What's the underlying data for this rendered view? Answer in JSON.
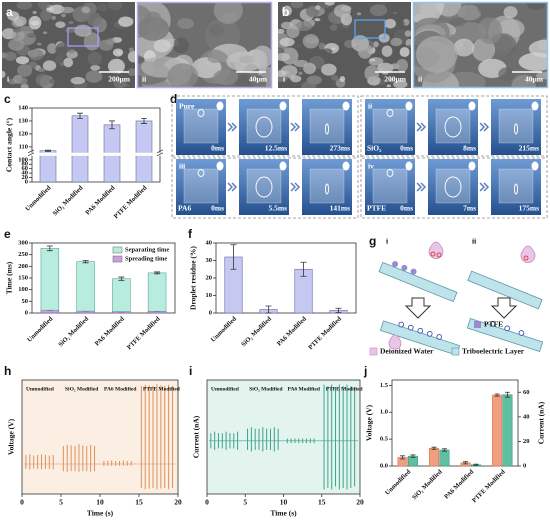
{
  "panels": {
    "a": {
      "label": "a",
      "parts": [
        "i",
        "ii"
      ],
      "scales": [
        "200μm",
        "40μm"
      ]
    },
    "b": {
      "label": "b",
      "parts": [
        "i",
        "ii"
      ],
      "scales": [
        "200μm",
        "40μm"
      ]
    },
    "d": {
      "label": "d",
      "groups": [
        {
          "name": "Pure",
          "times": [
            "0ms",
            "12.5ms",
            "273ms"
          ]
        },
        {
          "numeral": "ii",
          "name": "SiO₂",
          "times": [
            "0ms",
            "8ms",
            "215ms"
          ]
        },
        {
          "numeral": "iii",
          "name": "PA6",
          "times": [
            "0ms",
            "5.5ms",
            "141ms"
          ]
        },
        {
          "numeral": "iv",
          "name": "PTFE",
          "times": [
            "0ms",
            "7ms",
            "175ms"
          ]
        }
      ]
    },
    "g": {
      "label": "g",
      "parts": [
        "i",
        "ii"
      ],
      "legend": [
        "Deionized Water",
        "PTFE",
        "Triboelectric Layer"
      ]
    }
  },
  "chart_data": [
    {
      "panel": "c",
      "type": "bar",
      "y_label": "Contact angle (°)",
      "categories": [
        "Unmodified",
        "SiO₂ Modified",
        "PA6 Modified",
        "PTFE Modified"
      ],
      "values": [
        107,
        134,
        127,
        130
      ],
      "errors": [
        0.5,
        2,
        3,
        2
      ],
      "color": "#c5c8f0",
      "ylim": [
        0,
        140
      ],
      "yticks": [
        0,
        20,
        40,
        60,
        80,
        100,
        110,
        120,
        130,
        140
      ],
      "axis_break": 100
    },
    {
      "panel": "e",
      "type": "stacked_bar",
      "y_label": "Time (ms)",
      "categories": [
        "Unmodified",
        "SiO₂ Modified",
        "PA6 Modified",
        "PTFE Modified"
      ],
      "series": [
        {
          "name": "Spreading time",
          "color": "#c9a0dc",
          "values": [
            12,
            8,
            6,
            7
          ],
          "errors": [
            1,
            1,
            1,
            1
          ]
        },
        {
          "name": "Separating time",
          "color": "#b8ecdf",
          "values": [
            265,
            212,
            141,
            165
          ],
          "errors": [
            10,
            5,
            7,
            4
          ]
        }
      ],
      "ylim": [
        0,
        300
      ],
      "yticks": [
        0,
        50,
        100,
        150,
        200,
        250,
        300
      ],
      "legend": "upper right"
    },
    {
      "panel": "f",
      "type": "bar",
      "y_label": "Droplet residue (%)",
      "categories": [
        "Unmodified",
        "SiO₂ Modified",
        "PA6 Modified",
        "PTFE Modified"
      ],
      "values": [
        32,
        2,
        25,
        1.5
      ],
      "errors": [
        7,
        2,
        4,
        1.2
      ],
      "color": "#c5c8f0",
      "ylim": [
        0,
        40
      ],
      "yticks": [
        0,
        10,
        20,
        30,
        40
      ]
    },
    {
      "panel": "h",
      "type": "spikes",
      "y_label": "Voltage (V)",
      "x_label": "Time (s)",
      "annotations": [
        "Unmodified",
        "SiO₂ Modified",
        "PA6 Modified",
        "PTFE Modified"
      ],
      "x": [
        0.5,
        1,
        1.5,
        2,
        2.5,
        3,
        3.5,
        4,
        5.3,
        5.8,
        6.3,
        6.8,
        7.3,
        7.8,
        8.3,
        8.8,
        9.3,
        10.5,
        11,
        11.5,
        12,
        12.5,
        13,
        13.5,
        14,
        15.3,
        15.8,
        16.3,
        16.8,
        17.3,
        17.8,
        18.3,
        18.8,
        19.3
      ],
      "peaks": [
        0.15,
        0.16,
        0.14,
        0.15,
        0.16,
        0.15,
        0.14,
        0.15,
        0.3,
        0.32,
        0.31,
        0.3,
        0.33,
        0.31,
        0.3,
        0.32,
        0.3,
        0.05,
        0.05,
        0.06,
        0.05,
        0.05,
        0.06,
        0.05,
        0.05,
        1.3,
        1.32,
        1.31,
        1.3,
        1.33,
        1.31,
        1.3,
        1.32,
        1.3
      ],
      "troughs": [
        -0.08,
        -0.09,
        -0.08,
        -0.08,
        -0.09,
        -0.08,
        -0.08,
        -0.09,
        -0.12,
        -0.13,
        -0.12,
        -0.12,
        -0.13,
        -0.12,
        -0.12,
        -0.13,
        -0.12,
        -0.03,
        -0.03,
        -0.03,
        -0.03,
        -0.03,
        -0.03,
        -0.03,
        -0.03,
        -0.4,
        -0.42,
        -0.41,
        -0.4,
        -0.42,
        -0.41,
        -0.4,
        -0.42,
        -0.4
      ],
      "xlim": [
        0,
        20
      ],
      "xticks": [
        0,
        5,
        10,
        15,
        20
      ],
      "ylim": [
        -0.5,
        1.4
      ],
      "color": "#e0905a",
      "background": "#fbeee3"
    },
    {
      "panel": "i",
      "type": "spikes",
      "y_label": "Current (nA)",
      "x_label": "Time (s)",
      "annotations": [
        "Unmodified",
        "SiO₂ Modified",
        "PA6 Modified",
        "PTFE Modified"
      ],
      "x": [
        0.5,
        1,
        1.5,
        2,
        2.5,
        3,
        3.5,
        4,
        5.3,
        5.8,
        6.3,
        6.8,
        7.3,
        7.8,
        8.3,
        8.8,
        9.3,
        10.5,
        11,
        11.5,
        12,
        12.5,
        13,
        13.5,
        14,
        15.3,
        15.8,
        16.3,
        16.8,
        17.3,
        17.8,
        18.3,
        18.8,
        19.3
      ],
      "peaks": [
        5,
        6,
        5,
        5,
        6,
        5,
        5,
        6,
        8,
        9,
        8,
        8,
        9,
        8,
        8,
        9,
        8,
        1.5,
        1.5,
        1.5,
        1.5,
        1.5,
        1.5,
        1.5,
        1.5,
        37,
        36,
        37,
        35,
        37,
        36,
        37,
        36,
        35
      ],
      "troughs": [
        -5,
        -6,
        -5,
        -5,
        -6,
        -5,
        -5,
        -6,
        -6,
        -7,
        -6,
        -6,
        -7,
        -6,
        -6,
        -7,
        -6,
        -1.5,
        -1.5,
        -1.5,
        -1.5,
        -1.5,
        -1.5,
        -1.5,
        -1.5,
        -32,
        -31,
        -32,
        -30,
        -32,
        -31,
        -32,
        -31,
        -30
      ],
      "xlim": [
        0,
        20
      ],
      "xticks": [
        0,
        5,
        10,
        15,
        20
      ],
      "ylim": [
        -35,
        40
      ],
      "color": "#3aa58a",
      "background": "#e3f3ee"
    },
    {
      "panel": "j",
      "type": "grouped_bar",
      "categories": [
        "Unmodified",
        "SiO₂ Modified",
        "PA6 Modified",
        "PTFE Modified"
      ],
      "series": [
        {
          "name": "Voltage (V)",
          "color": "#f0a080",
          "values": [
            0.16,
            0.33,
            0.06,
            1.32
          ],
          "errors": [
            0.03,
            0.02,
            0.02,
            0.02
          ]
        },
        {
          "name": "Current (nA)",
          "color": "#5fbf9f",
          "axis": "y2",
          "values": [
            8,
            13,
            1,
            58
          ],
          "errors": [
            1,
            1,
            0.5,
            2
          ]
        }
      ],
      "ylim": [
        0,
        1.6
      ],
      "yticks": [
        {
          "value": 0,
          "label": "0.0"
        },
        {
          "value": 0.5,
          "label": "0.5"
        },
        {
          "value": 1,
          "label": "1.0"
        },
        {
          "value": 1.5,
          "label": "1.5"
        }
      ],
      "y2lim": [
        0,
        70
      ],
      "y2ticks": [
        0,
        20,
        40,
        60
      ]
    }
  ]
}
